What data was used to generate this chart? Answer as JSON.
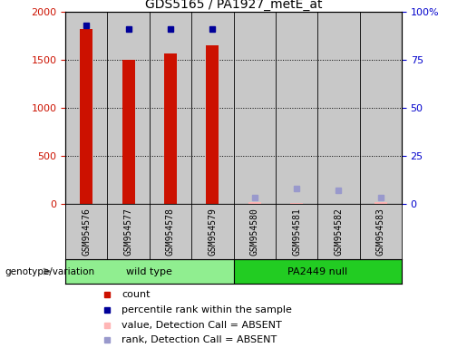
{
  "title": "GDS5165 / PA1927_metE_at",
  "samples": [
    "GSM954576",
    "GSM954577",
    "GSM954578",
    "GSM954579",
    "GSM954580",
    "GSM954581",
    "GSM954582",
    "GSM954583"
  ],
  "counts": [
    1820,
    1500,
    1570,
    1650,
    0,
    0,
    0,
    0
  ],
  "ranks": [
    93,
    91,
    91,
    91,
    0,
    0,
    0,
    0
  ],
  "absent_values": [
    0,
    0,
    0,
    0,
    20,
    5,
    0,
    20
  ],
  "absent_ranks": [
    0,
    0,
    0,
    0,
    3,
    8,
    7,
    3
  ],
  "is_absent": [
    false,
    false,
    false,
    false,
    true,
    true,
    true,
    true
  ],
  "ylim_left": [
    0,
    2000
  ],
  "ylim_right": [
    0,
    100
  ],
  "yticks_left": [
    0,
    500,
    1000,
    1500,
    2000
  ],
  "yticks_right": [
    0,
    25,
    50,
    75,
    100
  ],
  "ytick_labels_right": [
    "0",
    "25",
    "50",
    "75",
    "100%"
  ],
  "ytick_labels_left_top": "2000",
  "groups": [
    {
      "label": "wild type",
      "start": 0,
      "end": 4,
      "color": "#90EE90"
    },
    {
      "label": "PA2449 null",
      "start": 4,
      "end": 8,
      "color": "#22CC22"
    }
  ],
  "bar_color_present": "#CC1100",
  "rank_color_present": "#000099",
  "absent_value_color": "#FFB6B6",
  "absent_rank_color": "#9999CC",
  "left_tick_color": "#CC1100",
  "right_tick_color": "#0000CC",
  "background_color": "#ffffff",
  "plot_bg_color": "#C8C8C8",
  "label_bg_color": "#C8C8C8",
  "group_label": "genotype/variation",
  "title_fontsize": 10,
  "axis_fontsize": 8,
  "sample_fontsize": 7,
  "legend_fontsize": 8,
  "bar_width": 0.3
}
